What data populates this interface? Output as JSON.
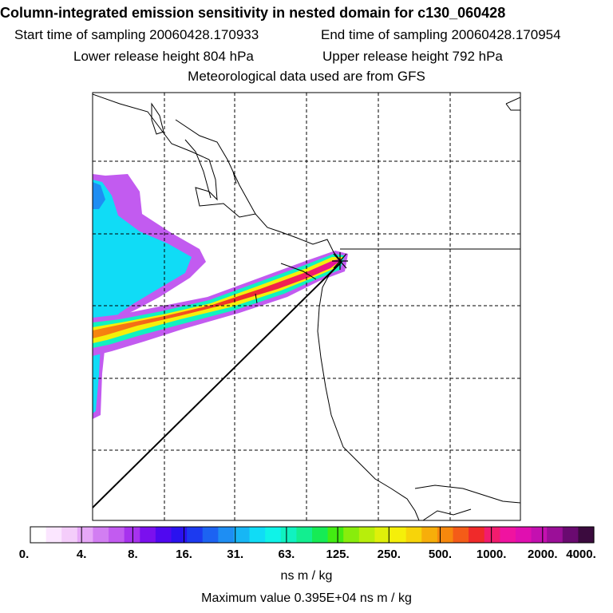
{
  "header": {
    "title": "Column-integrated emission sensitivity in nested domain for c130_060428",
    "start_label": "Start time of sampling 20060428.170933",
    "end_label": "End time of sampling 20060428.170954",
    "lower_label": "Lower release height  804 hPa",
    "upper_label": "Upper release height  792 hPa",
    "met_label": "Meteorological data used are from GFS"
  },
  "colorbar": {
    "tick_labels": [
      "0.",
      "4.",
      "8.",
      "16.",
      "31.",
      "63.",
      "125.",
      "250.",
      "500.",
      "1000.",
      "2000.",
      "4000."
    ],
    "unit": "ns m / kg",
    "colors": [
      "#ffffff",
      "#fbe6ff",
      "#f4cdfa",
      "#e6a8f7",
      "#d27ef2",
      "#c25bf0",
      "#a732ee",
      "#7b10ee",
      "#5008f0",
      "#2a12ef",
      "#1c3af0",
      "#1c63f2",
      "#1e8ef3",
      "#17b6f5",
      "#10dcf6",
      "#0ff3e8",
      "#10f2c0",
      "#12ee90",
      "#16eb55",
      "#43ec12",
      "#88ed0c",
      "#b8ee0b",
      "#dff00a",
      "#f5ef0a",
      "#f7d40a",
      "#f7ae0a",
      "#f7880d",
      "#f45c18",
      "#f02a2a",
      "#f21c6d",
      "#f013a0",
      "#e00fb0",
      "#c410b0",
      "#9b0f98",
      "#6a0a70",
      "#3b0b3e"
    ]
  },
  "footer": {
    "max_label": "Maximum value  0.395E+04 ns m / kg"
  }
}
